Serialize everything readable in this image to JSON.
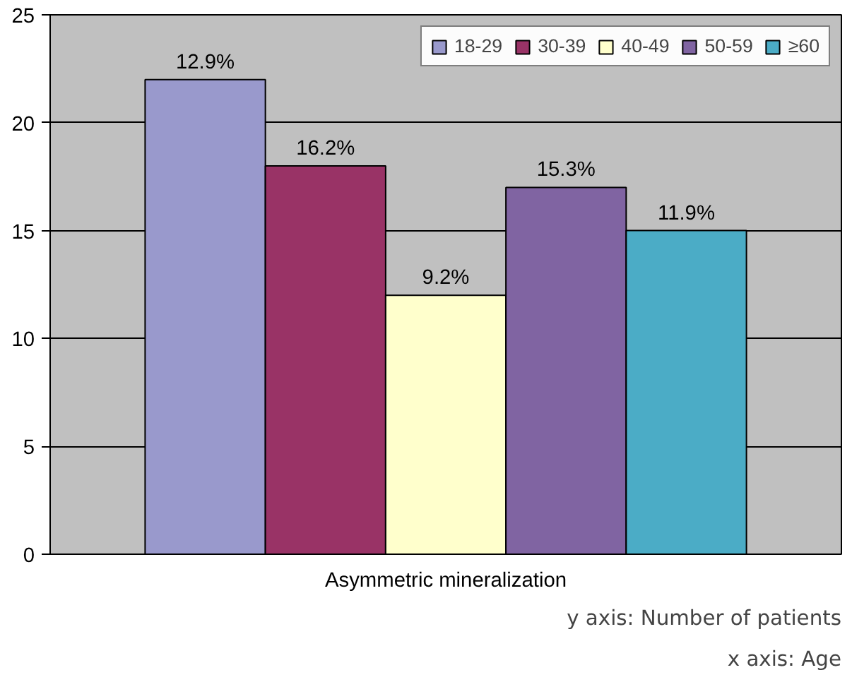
{
  "chart_data": {
    "type": "bar",
    "categories": [
      "Asymmetric mineralization"
    ],
    "series": [
      {
        "name": "18-29",
        "color": "#9999cc",
        "values": [
          22
        ]
      },
      {
        "name": "30-39",
        "color": "#993366",
        "values": [
          18
        ]
      },
      {
        "name": "40-49",
        "color": "#ffffcc",
        "values": [
          12
        ]
      },
      {
        "name": "50-59",
        "color": "#8064a2",
        "values": [
          17
        ]
      },
      {
        "name": "≥60",
        "color": "#4bacc6",
        "values": [
          15
        ]
      }
    ],
    "ylim": [
      0,
      25
    ],
    "yticks": [
      0,
      5,
      10,
      15,
      20,
      25
    ],
    "grid": "y",
    "legend": "top right",
    "annotations": [
      {
        "text": "12.9%",
        "y": 22
      },
      {
        "text": "16.2%",
        "y": 18
      },
      {
        "text": "9.2%",
        "y": 12
      },
      {
        "text": "15.3%",
        "y": 17
      },
      {
        "text": "11.9%",
        "y": 15
      },
      "y axis: Number of patients",
      "x axis: Age"
    ]
  }
}
